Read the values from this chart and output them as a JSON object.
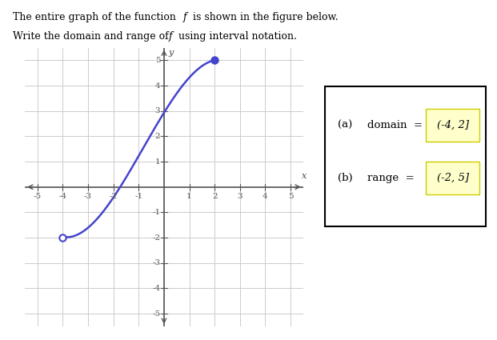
{
  "graph_xlim": [
    -5.5,
    5.5
  ],
  "graph_ylim": [
    -5.5,
    5.5
  ],
  "curve_color": "#4444cc",
  "grid_color": "#cccccc",
  "axis_color": "#555555",
  "open_endpoint": [
    -4,
    -2
  ],
  "closed_endpoint": [
    2,
    5
  ],
  "answer_box_bg": "#ffffcc",
  "answer_box_border": "#cccc00",
  "domain_text": "(-4, 2]",
  "range_text": "(-2, 5]",
  "background": "#ffffff",
  "curve_points_x": [
    -4,
    -3,
    -2,
    -1,
    0,
    1,
    2
  ],
  "curve_points_y": [
    -2,
    -1.5,
    -0.5,
    1.2,
    3.0,
    4.3,
    5.0
  ]
}
